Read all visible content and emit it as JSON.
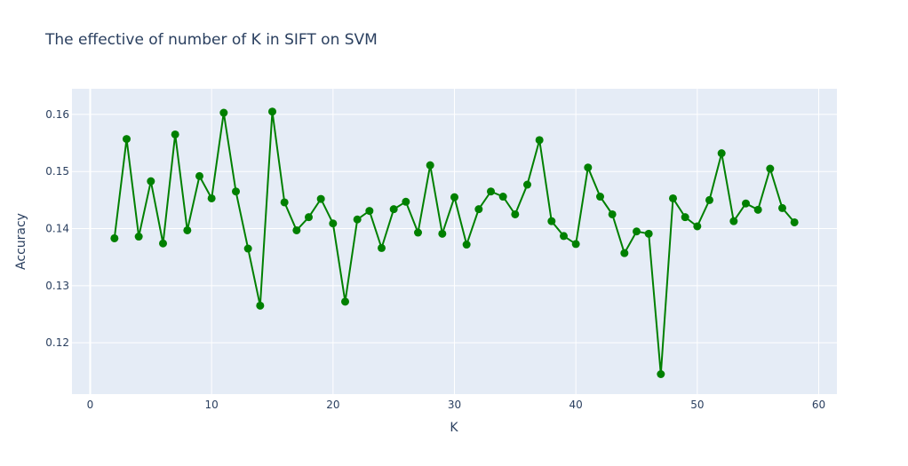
{
  "chart_data": {
    "type": "line",
    "title": "The effective of number of K in SIFT on SVM",
    "xlabel": "K",
    "ylabel": "Accuracy",
    "xlim": [
      -1.5,
      61.5
    ],
    "ylim": [
      0.111,
      0.1645
    ],
    "x_ticks": [
      0,
      10,
      20,
      30,
      40,
      50,
      60
    ],
    "y_ticks": [
      0.12,
      0.13,
      0.14,
      0.15,
      0.16
    ],
    "grid": true,
    "marker": "circle",
    "color": "#008000",
    "plot_bg": "#e5ecf6",
    "series": [
      {
        "x": [
          2,
          3,
          4,
          5,
          6,
          7,
          8,
          9,
          10,
          11,
          12,
          13,
          14,
          15,
          16,
          17,
          18,
          19,
          20,
          21,
          22,
          23,
          24,
          25,
          26,
          27,
          28,
          29,
          30,
          31,
          32,
          33,
          34,
          35,
          36,
          37,
          38,
          39,
          40,
          41,
          42,
          43,
          44,
          45,
          46,
          47,
          48,
          49,
          50,
          51,
          52,
          53,
          54,
          55,
          56,
          57,
          58
        ],
        "y": [
          0.1383,
          0.1557,
          0.1386,
          0.1483,
          0.1374,
          0.1565,
          0.1397,
          0.1492,
          0.1453,
          0.1603,
          0.1465,
          0.1365,
          0.1265,
          0.1605,
          0.1446,
          0.1397,
          0.142,
          0.1452,
          0.1409,
          0.1272,
          0.1416,
          0.1431,
          0.1366,
          0.1434,
          0.1447,
          0.1393,
          0.1511,
          0.1391,
          0.1455,
          0.1372,
          0.1434,
          0.1465,
          0.1456,
          0.1425,
          0.1477,
          0.1555,
          0.1413,
          0.1387,
          0.1373,
          0.1507,
          0.1456,
          0.1425,
          0.1357,
          0.1395,
          0.1391,
          0.1145,
          0.1453,
          0.142,
          0.1404,
          0.145,
          0.1532,
          0.1413,
          0.1444,
          0.1433,
          0.1505,
          0.1436,
          0.1411
        ]
      }
    ]
  }
}
